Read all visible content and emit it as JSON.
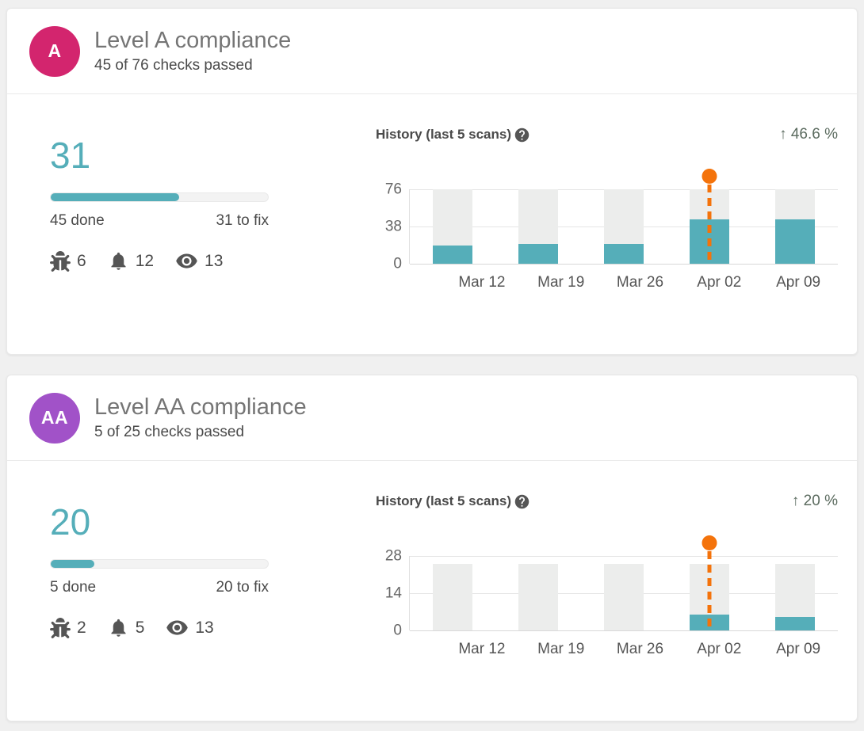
{
  "colors": {
    "accent_teal": "#55aeb9",
    "marker_orange": "#f4730b",
    "bar_bg": "#ecedec",
    "badge_a_pink": "#d3256e",
    "badge_aa_purple": "#a152c8",
    "change_text": "#5b6b5f"
  },
  "cards": [
    {
      "badge_label": "A",
      "title": "Level A compliance",
      "subtitle": "45 of 76 checks passed",
      "score": "31",
      "progress_percent": 59.2,
      "done_label": "45 done",
      "fix_label": "31 to fix",
      "issues": [
        {
          "icon": "bug-icon",
          "count": "6"
        },
        {
          "icon": "bell-icon",
          "count": "12"
        },
        {
          "icon": "eye-icon",
          "count": "13"
        }
      ],
      "history_title": "History (last 5 scans)",
      "change_label": "↑ 46.6 %"
    },
    {
      "badge_label": "AA",
      "title": "Level AA compliance",
      "subtitle": "5 of 25 checks passed",
      "score": "20",
      "progress_percent": 20,
      "done_label": "5 done",
      "fix_label": "20 to fix",
      "issues": [
        {
          "icon": "bug-icon",
          "count": "2"
        },
        {
          "icon": "bell-icon",
          "count": "5"
        },
        {
          "icon": "eye-icon",
          "count": "13"
        }
      ],
      "history_title": "History (last 5 scans)",
      "change_label": "↑ 20 %"
    }
  ],
  "chart_data": [
    {
      "type": "bar",
      "title": "Level A compliance — History (last 5 scans)",
      "categories": [
        "Mar 12",
        "Mar 19",
        "Mar 26",
        "Apr 02",
        "Apr 09"
      ],
      "series": [
        {
          "name": "total checks",
          "values": [
            76,
            76,
            76,
            76,
            76
          ]
        },
        {
          "name": "checks passed",
          "values": [
            19,
            20,
            20,
            45,
            45
          ]
        }
      ],
      "yticks": [
        0,
        38,
        76
      ],
      "ylim": [
        0,
        76
      ],
      "marker_index": 3,
      "legend": "none",
      "grid": "horizontal",
      "change_annotation": "↑ 46.6 %"
    },
    {
      "type": "bar",
      "title": "Level AA compliance — History (last 5 scans)",
      "categories": [
        "Mar 12",
        "Mar 19",
        "Mar 26",
        "Apr 02",
        "Apr 09"
      ],
      "series": [
        {
          "name": "total checks",
          "values": [
            25,
            25,
            25,
            25,
            25
          ]
        },
        {
          "name": "checks passed",
          "values": [
            0,
            0,
            0,
            6,
            5
          ]
        }
      ],
      "yticks": [
        0,
        14,
        28
      ],
      "ylim": [
        0,
        28
      ],
      "marker_index": 3,
      "legend": "none",
      "grid": "horizontal",
      "change_annotation": "↑ 20 %"
    }
  ]
}
